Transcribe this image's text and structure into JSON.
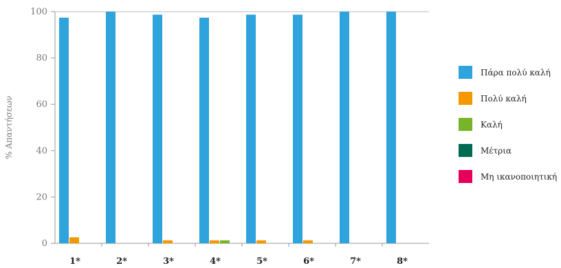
{
  "chart_data": {
    "type": "bar",
    "ylabel": "% Απαντήσεων",
    "ylim": [
      0,
      100
    ],
    "yticks": [
      0,
      20,
      40,
      60,
      80,
      100
    ],
    "grid": false,
    "legend_position": "right",
    "categories": [
      "1*",
      "2*",
      "3*",
      "4*",
      "5*",
      "6*",
      "7*",
      "8*"
    ],
    "series": [
      {
        "name": "Πάρα πολύ καλή",
        "color": "#2ea3dc",
        "values": [
          97.4,
          100,
          98.7,
          97.4,
          98.7,
          98.7,
          100,
          100
        ]
      },
      {
        "name": "Πολύ καλή",
        "color": "#f39800",
        "values": [
          2.6,
          0,
          1.3,
          1.3,
          1.3,
          1.3,
          0,
          0
        ]
      },
      {
        "name": "Καλή",
        "color": "#78b42a",
        "values": [
          0,
          0,
          0,
          1.3,
          0,
          0,
          0,
          0
        ]
      },
      {
        "name": "Μέτρια",
        "color": "#006b52",
        "values": [
          0,
          0,
          0,
          0,
          0,
          0,
          0,
          0
        ]
      },
      {
        "name": "Μη ικανοποιητική",
        "color": "#e4005a",
        "values": [
          0,
          0,
          0,
          0,
          0,
          0,
          0,
          0
        ]
      }
    ]
  }
}
